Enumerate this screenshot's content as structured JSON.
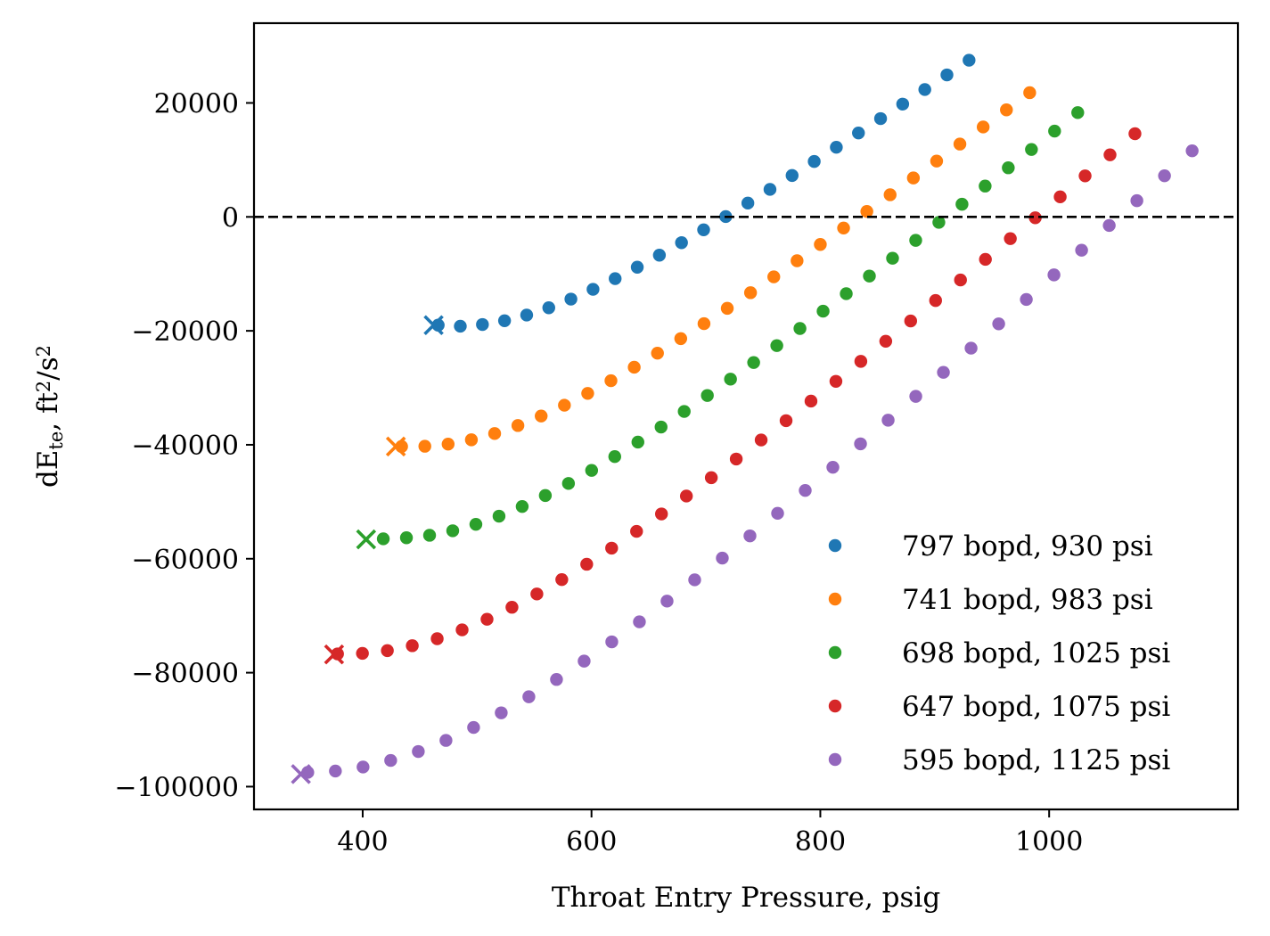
{
  "chart_data": {
    "type": "scatter",
    "title": "",
    "xlabel": "Throat Entry Pressure, psig",
    "ylabel": "dE",
    "ylabel_sub": "te",
    "ylabel_rest": ", ft",
    "ylabel_sup1": "2",
    "ylabel_slash": "/s",
    "ylabel_sup2": "2",
    "xlim": [
      305,
      1165
    ],
    "ylim": [
      -104000,
      34000
    ],
    "xticks": [
      400,
      600,
      800,
      1000
    ],
    "xtick_labels": [
      "400",
      "600",
      "800",
      "1000"
    ],
    "yticks": [
      20000,
      0,
      -20000,
      -40000,
      -60000,
      -80000,
      -100000
    ],
    "ytick_labels": [
      "20000",
      "0",
      "−20000",
      "−40000",
      "−60000",
      "−80000",
      "−100000"
    ],
    "hline": {
      "y": 0,
      "style": "dashed",
      "color": "#000000"
    },
    "grid": false,
    "legend_position": "lower-right",
    "series": [
      {
        "name": "797 bopd, 930 psi",
        "color": "#1f77b4",
        "marker_x": 462,
        "marker_y": -19000,
        "x_start": 466,
        "x_end": 930,
        "points": 25,
        "y_min": -19200,
        "y_min_x": 480,
        "y_at_start": -19000,
        "y_at_end": 27500
      },
      {
        "name": "741 bopd, 983 psi",
        "color": "#ff7f0e",
        "marker_x": 429,
        "marker_y": -40300,
        "x_start": 434,
        "x_end": 983,
        "points": 28,
        "y_min": -40300,
        "y_min_x": 445,
        "y_at_start": -40300,
        "y_at_end": 21800
      },
      {
        "name": "698 bopd, 1025 psi",
        "color": "#2ca02c",
        "marker_x": 403,
        "marker_y": -56600,
        "x_start": 418,
        "x_end": 1025,
        "points": 31,
        "y_min": -56400,
        "y_min_x": 425,
        "y_at_start": -56500,
        "y_at_end": 18300
      },
      {
        "name": "647 bopd, 1075 psi",
        "color": "#d62728",
        "marker_x": 375,
        "marker_y": -76800,
        "x_start": 378,
        "x_end": 1075,
        "points": 33,
        "y_min": -76700,
        "y_min_x": 385,
        "y_at_start": -76700,
        "y_at_end": 14600
      },
      {
        "name": "595 bopd, 1125 psi",
        "color": "#9467bd",
        "marker_x": 346,
        "marker_y": -97800,
        "x_start": 352,
        "x_end": 1125,
        "points": 33,
        "y_min": -97500,
        "y_min_x": 352,
        "y_at_start": -97500,
        "y_at_end": 11600
      }
    ]
  }
}
